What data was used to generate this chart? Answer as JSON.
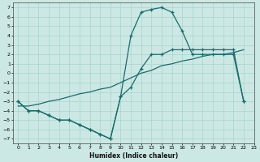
{
  "xlabel": "Humidex (Indice chaleur)",
  "bg_color": "#cce8e4",
  "grid_color": "#a8d4ce",
  "line_color": "#1a6b6b",
  "xlim": [
    -0.5,
    23
  ],
  "ylim": [
    -7.5,
    7.5
  ],
  "xticks": [
    0,
    1,
    2,
    3,
    4,
    5,
    6,
    7,
    8,
    9,
    10,
    11,
    12,
    13,
    14,
    15,
    16,
    17,
    18,
    19,
    20,
    21,
    22,
    23
  ],
  "yticks": [
    -7,
    -6,
    -5,
    -4,
    -3,
    -2,
    -1,
    0,
    1,
    2,
    3,
    4,
    5,
    6,
    7
  ],
  "line1_x": [
    0,
    1,
    2,
    3,
    4,
    5,
    6,
    7,
    8,
    9,
    10,
    11,
    12,
    13,
    14,
    15,
    16,
    17,
    18,
    19,
    20,
    21,
    22
  ],
  "line1_y": [
    -3,
    -4,
    -4,
    -4.5,
    -5,
    -5,
    -5.5,
    -6,
    -6.5,
    -7,
    -2.5,
    4,
    6.5,
    6.8,
    7,
    6.5,
    4.5,
    2,
    2,
    2,
    2,
    2,
    -3
  ],
  "line2_x": [
    0,
    1,
    2,
    3,
    4,
    5,
    6,
    7,
    8,
    9,
    10,
    11,
    12,
    13,
    14,
    15,
    16,
    17,
    18,
    19,
    20,
    21,
    22
  ],
  "line2_y": [
    -3,
    -4,
    -4,
    -4.5,
    -5,
    -5,
    -5.5,
    -6,
    -6.5,
    -7,
    -2.5,
    -1.5,
    0.5,
    2,
    2,
    2.5,
    2.5,
    2.5,
    2.5,
    2.5,
    2.5,
    2.5,
    -3
  ],
  "line3_x": [
    0,
    1,
    2,
    3,
    4,
    5,
    6,
    7,
    8,
    9,
    10,
    11,
    12,
    13,
    14,
    15,
    16,
    17,
    18,
    19,
    20,
    21,
    22
  ],
  "line3_y": [
    -3.5,
    -3.5,
    -3.3,
    -3.0,
    -2.8,
    -2.5,
    -2.2,
    -2.0,
    -1.7,
    -1.5,
    -1.0,
    -0.5,
    0.0,
    0.3,
    0.8,
    1.0,
    1.3,
    1.5,
    1.8,
    2.0,
    2.0,
    2.2,
    2.5
  ]
}
